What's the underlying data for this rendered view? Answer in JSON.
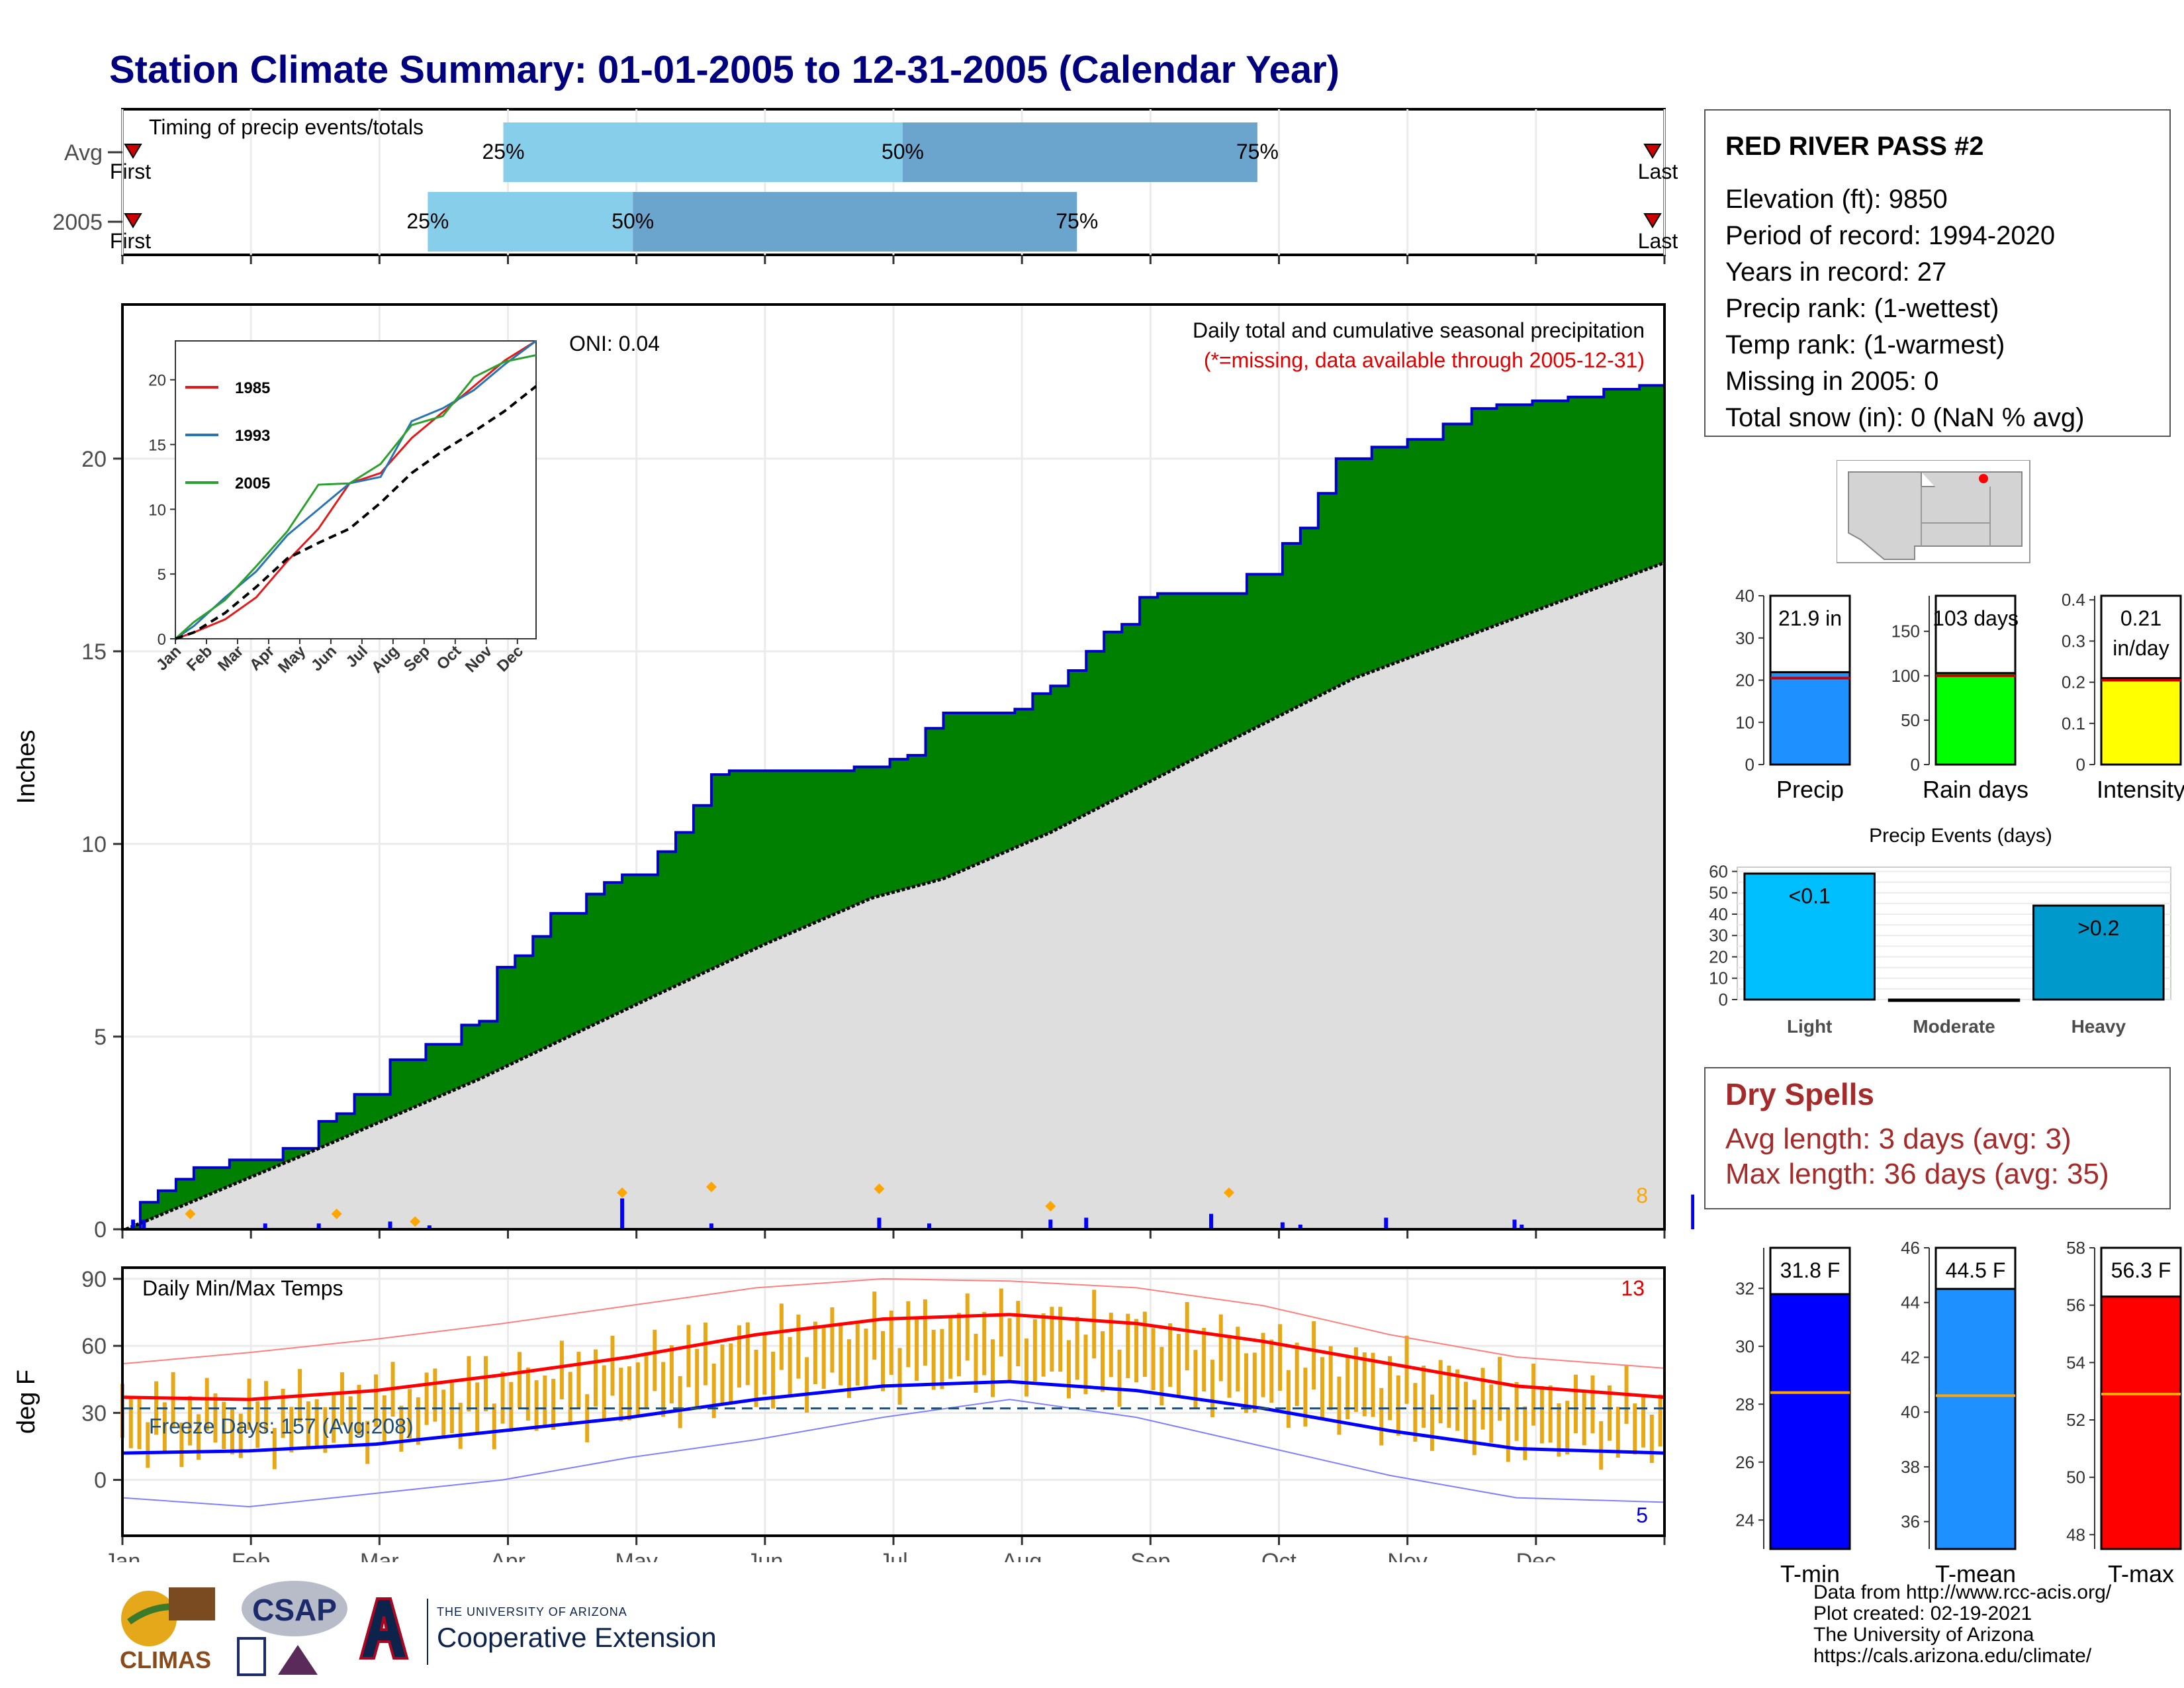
{
  "title": "Station Climate Summary: 01-01-2005 to 12-31-2005 (Calendar Year)",
  "timing": {
    "label": "Timing of precip events/totals",
    "rows": [
      {
        "name": "Avg",
        "p25": 0.247,
        "p50": 0.506,
        "p75": 0.736,
        "first": "First",
        "last": "Last"
      },
      {
        "name": "2005",
        "p25": 0.198,
        "p50": 0.331,
        "p75": 0.619,
        "first": "First",
        "last": "Last"
      }
    ],
    "pct_labels": [
      "25%",
      "50%",
      "75%"
    ]
  },
  "months": [
    "Jan",
    "Feb",
    "Mar",
    "Apr",
    "May",
    "Jun",
    "Jul",
    "Aug",
    "Sep",
    "Oct",
    "Nov",
    "Dec"
  ],
  "chart_data": [
    {
      "type": "area",
      "name": "cumulative precipitation",
      "title": "Daily total and cumulative seasonal precipitation",
      "subtitle": "(*=missing, data available through 2005-12-31)",
      "ylabel": "Inches",
      "ylim": [
        0,
        24
      ],
      "yticks": [
        0,
        5,
        10,
        15,
        20
      ],
      "oni": "ONI: 0.04",
      "heavy_count": "8",
      "cumulative_2005": [
        [
          1,
          0
        ],
        [
          5,
          0.7
        ],
        [
          10,
          1.0
        ],
        [
          15,
          1.3
        ],
        [
          20,
          1.6
        ],
        [
          30,
          1.8
        ],
        [
          45,
          2.1
        ],
        [
          55,
          2.8
        ],
        [
          60,
          3.0
        ],
        [
          65,
          3.5
        ],
        [
          75,
          4.4
        ],
        [
          85,
          4.8
        ],
        [
          95,
          5.3
        ],
        [
          100,
          5.4
        ],
        [
          105,
          6.8
        ],
        [
          110,
          7.1
        ],
        [
          115,
          7.6
        ],
        [
          120,
          8.2
        ],
        [
          130,
          8.7
        ],
        [
          135,
          9.0
        ],
        [
          140,
          9.2
        ],
        [
          150,
          9.8
        ],
        [
          155,
          10.3
        ],
        [
          160,
          11.0
        ],
        [
          165,
          11.8
        ],
        [
          170,
          11.9
        ],
        [
          190,
          11.9
        ],
        [
          195,
          11.9
        ],
        [
          205,
          12.0
        ],
        [
          215,
          12.2
        ],
        [
          220,
          12.3
        ],
        [
          225,
          13.0
        ],
        [
          230,
          13.4
        ],
        [
          250,
          13.5
        ],
        [
          255,
          13.9
        ],
        [
          260,
          14.1
        ],
        [
          265,
          14.5
        ],
        [
          270,
          15.0
        ],
        [
          275,
          15.5
        ],
        [
          280,
          15.7
        ],
        [
          285,
          16.4
        ],
        [
          290,
          16.5
        ],
        [
          300,
          16.5
        ],
        [
          315,
          17.0
        ],
        [
          325,
          17.8
        ],
        [
          330,
          18.2
        ],
        [
          335,
          19.1
        ],
        [
          340,
          20.0
        ],
        [
          350,
          20.3
        ],
        [
          360,
          20.5
        ],
        [
          370,
          20.9
        ],
        [
          378,
          21.3
        ],
        [
          385,
          21.4
        ],
        [
          395,
          21.5
        ],
        [
          405,
          21.6
        ],
        [
          415,
          21.8
        ],
        [
          425,
          21.9
        ],
        [
          432,
          21.9
        ]
      ],
      "cumulative_avg": [
        [
          1,
          0
        ],
        [
          50,
          1.9
        ],
        [
          100,
          3.9
        ],
        [
          150,
          6.1
        ],
        [
          180,
          7.4
        ],
        [
          210,
          8.6
        ],
        [
          230,
          9.1
        ],
        [
          260,
          10.3
        ],
        [
          300,
          12.2
        ],
        [
          345,
          14.3
        ],
        [
          400,
          16.2
        ],
        [
          432,
          17.3
        ]
      ],
      "daily_spikes": [
        [
          3,
          0.25
        ],
        [
          6,
          0.25
        ],
        [
          40,
          0.15
        ],
        [
          55,
          0.15
        ],
        [
          75,
          0.2
        ],
        [
          86,
          0.1
        ],
        [
          140,
          0.8
        ],
        [
          165,
          0.15
        ],
        [
          212,
          0.3
        ],
        [
          226,
          0.15
        ],
        [
          260,
          0.25
        ],
        [
          270,
          0.3
        ],
        [
          305,
          0.4
        ],
        [
          325,
          0.18
        ],
        [
          330,
          0.12
        ],
        [
          354,
          0.3
        ],
        [
          390,
          0.25
        ],
        [
          392,
          0.12
        ],
        [
          440,
          0.9
        ]
      ],
      "extreme_markers": [
        [
          19,
          0.4
        ],
        [
          60,
          0.4
        ],
        [
          82,
          0.2
        ],
        [
          140,
          0.95
        ],
        [
          165,
          1.1
        ],
        [
          212,
          1.05
        ],
        [
          260,
          0.6
        ],
        [
          310,
          0.95
        ]
      ]
    },
    {
      "type": "line",
      "name": "inset cumulative comparison",
      "categories": [
        "Jan",
        "Feb",
        "Mar",
        "Apr",
        "May",
        "Jun",
        "Jul",
        "Aug",
        "Sep",
        "Oct",
        "Nov",
        "Dec"
      ],
      "ylim": [
        0,
        23
      ],
      "yticks": [
        0,
        5,
        10,
        15,
        20
      ],
      "series": [
        {
          "name": "1985",
          "color": "#e31a1c",
          "values": [
            0.5,
            1.5,
            3.2,
            6.0,
            8.5,
            12.0,
            12.8,
            15.5,
            17.5,
            19.5,
            21.5,
            23.0
          ]
        },
        {
          "name": "1993",
          "color": "#2874b5",
          "values": [
            1.0,
            3.2,
            5.2,
            8.0,
            10.0,
            12.0,
            12.5,
            16.8,
            17.8,
            19.2,
            21.2,
            23.0
          ]
        },
        {
          "name": "2005",
          "color": "#2ca02c",
          "values": [
            1.3,
            3.0,
            5.6,
            8.3,
            11.9,
            12.0,
            13.5,
            16.5,
            17.2,
            20.2,
            21.4,
            21.9
          ]
        },
        {
          "name": "",
          "color": "#000000",
          "dashed": true,
          "values": [
            0.5,
            2.0,
            4.0,
            6.2,
            7.4,
            8.5,
            10.5,
            12.8,
            14.5,
            16.0,
            17.6,
            19.5
          ]
        }
      ]
    },
    {
      "type": "line",
      "name": "temperature",
      "title": "Daily Min/Max Temps",
      "ylabel": "deg F",
      "ylim": [
        -25,
        95
      ],
      "yticks": [
        0,
        30,
        60,
        90
      ],
      "freeze_label": "Freeze Days: 157 (Avg:208)",
      "freeze_line": 32,
      "record_high_count": "13",
      "record_low_count": "5",
      "avg_max": [
        [
          0,
          37
        ],
        [
          30,
          36
        ],
        [
          60,
          40
        ],
        [
          90,
          47
        ],
        [
          120,
          55
        ],
        [
          150,
          65
        ],
        [
          180,
          72
        ],
        [
          210,
          74
        ],
        [
          240,
          70
        ],
        [
          270,
          62
        ],
        [
          300,
          52
        ],
        [
          330,
          42
        ],
        [
          365,
          37
        ]
      ],
      "avg_min": [
        [
          0,
          12
        ],
        [
          30,
          13
        ],
        [
          60,
          16
        ],
        [
          90,
          22
        ],
        [
          120,
          28
        ],
        [
          150,
          36
        ],
        [
          180,
          42
        ],
        [
          210,
          44
        ],
        [
          240,
          40
        ],
        [
          270,
          32
        ],
        [
          300,
          22
        ],
        [
          330,
          14
        ],
        [
          365,
          12
        ]
      ],
      "record_max": [
        [
          0,
          52
        ],
        [
          30,
          57
        ],
        [
          60,
          63
        ],
        [
          90,
          70
        ],
        [
          120,
          78
        ],
        [
          150,
          86
        ],
        [
          180,
          90
        ],
        [
          210,
          89
        ],
        [
          240,
          86
        ],
        [
          270,
          78
        ],
        [
          300,
          65
        ],
        [
          330,
          55
        ],
        [
          365,
          50
        ]
      ],
      "record_min": [
        [
          0,
          -8
        ],
        [
          30,
          -12
        ],
        [
          60,
          -6
        ],
        [
          90,
          0
        ],
        [
          120,
          10
        ],
        [
          150,
          18
        ],
        [
          180,
          28
        ],
        [
          210,
          36
        ],
        [
          240,
          28
        ],
        [
          270,
          15
        ],
        [
          300,
          2
        ],
        [
          330,
          -8
        ],
        [
          365,
          -10
        ]
      ]
    },
    {
      "type": "bar",
      "name": "annual totals",
      "panels": [
        {
          "label": "Precip",
          "value_label": "21.9 in",
          "value": 21.9,
          "avg": 20.5,
          "ylim": [
            0,
            40
          ],
          "yticks": [
            0,
            10,
            20,
            30,
            40
          ],
          "color": "#1e90ff"
        },
        {
          "label": "Rain days",
          "value_label": "103 days",
          "value": 103,
          "avg": 100,
          "ylim": [
            0,
            190
          ],
          "yticks": [
            0,
            50,
            100,
            150
          ],
          "color": "#00ff00"
        },
        {
          "label": "Intensity",
          "value_label": "0.21 in/day",
          "value": 0.21,
          "avg": 0.205,
          "ylim": [
            0,
            0.41
          ],
          "yticks": [
            0.0,
            0.1,
            0.2,
            0.3,
            0.4
          ],
          "color": "#ffff00"
        }
      ]
    },
    {
      "type": "bar",
      "name": "precip events",
      "title": "Precip Events (days)",
      "categories": [
        "Light",
        "Moderate",
        "Heavy"
      ],
      "values": [
        59,
        0,
        44
      ],
      "value_labels": [
        "<0.1",
        "",
        ">0.2"
      ],
      "colors": [
        "#00bfff",
        "#00bfff",
        "#0099cc"
      ],
      "ylim": [
        0,
        62
      ],
      "yticks": [
        0,
        10,
        20,
        30,
        40,
        50,
        60
      ]
    },
    {
      "type": "bar",
      "name": "annual temperatures",
      "panels": [
        {
          "label": "T-min",
          "value_label": "31.8 F",
          "value": 31.8,
          "avg": 28.4,
          "ylim": [
            23,
            33.4
          ],
          "yticks": [
            24,
            26,
            28,
            30,
            32
          ],
          "color": "#0000ff"
        },
        {
          "label": "T-mean",
          "value_label": "44.5 F",
          "value": 44.5,
          "avg": 40.6,
          "ylim": [
            35,
            46
          ],
          "yticks": [
            36,
            38,
            40,
            42,
            44,
            46
          ],
          "color": "#1e90ff"
        },
        {
          "label": "T-max",
          "value_label": "56.3 F",
          "value": 56.3,
          "avg": 52.9,
          "ylim": [
            47.5,
            58
          ],
          "yticks": [
            48,
            50,
            52,
            54,
            56,
            58
          ],
          "color": "#ff0000"
        }
      ]
    }
  ],
  "station": {
    "name": "RED RIVER PASS #2",
    "lines": [
      "Elevation (ft): 9850",
      "Period of record: 1994-2020",
      "Years in record: 27",
      "Precip rank:  (1-wettest)",
      "Temp rank:  (1-warmest)",
      "Missing in 2005: 0",
      "Total snow (in): 0 (NaN % avg)"
    ]
  },
  "dry_spells": {
    "title": "Dry Spells",
    "avg": "Avg length: 3 days (avg: 3)",
    "max": "Max length: 36 days (avg: 35)"
  },
  "footer": {
    "credit": "Data from http://www.rcc-acis.org/\nPlot created: 02-19-2021\nThe University of Arizona\nhttps://cals.arizona.edu/climate/",
    "climas": "CLIMAS",
    "csap": "CSAP",
    "ua_small": "THE UNIVERSITY OF ARIZONA",
    "ua_big": "Cooperative Extension"
  }
}
